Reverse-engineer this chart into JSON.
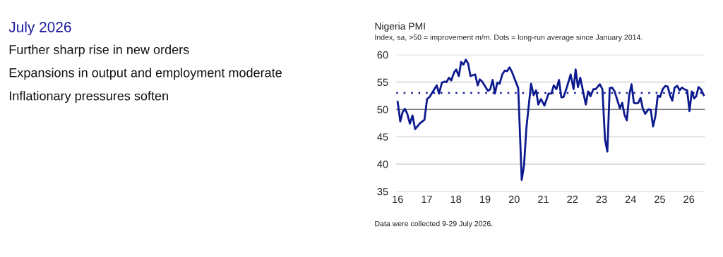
{
  "chart_data": {
    "type": "line",
    "title": "Nigeria PMI",
    "subtitle": "Index, sa, >50 = improvement m/m. Dots = long-run average since January 2014.",
    "annotations": [
      "July 2026",
      "Further sharp rise in new orders",
      "Expansions in output and employment moderate",
      "Inflationary pressures soften",
      "Data were collected 9-29 July 2026."
    ],
    "series": [
      {
        "color": "#0c1a8e",
        "x": [
          16.0,
          16.09,
          16.17,
          16.25,
          16.33,
          16.42,
          16.51,
          16.6,
          16.77,
          16.92,
          17.01,
          17.1,
          17.34,
          17.42,
          17.52,
          17.62,
          17.68,
          17.76,
          17.84,
          17.94,
          18.01,
          18.1,
          18.18,
          18.26,
          18.34,
          18.42,
          18.5,
          18.66,
          18.75,
          18.82,
          18.9,
          19.1,
          19.18,
          19.26,
          19.34,
          19.42,
          19.5,
          19.6,
          19.68,
          19.76,
          19.84,
          19.92,
          20.14,
          20.26,
          20.34,
          20.42,
          20.58,
          20.67,
          20.75,
          20.83,
          20.92,
          21.04,
          21.18,
          21.28,
          21.36,
          21.45,
          21.54,
          21.62,
          21.7,
          21.8,
          21.94,
          22.04,
          22.11,
          22.19,
          22.27,
          22.46,
          22.54,
          22.62,
          22.72,
          22.8,
          22.94,
          23.03,
          23.12,
          23.2,
          23.28,
          23.36,
          23.45,
          23.63,
          23.71,
          23.79,
          23.87,
          23.95,
          24.03,
          24.11,
          24.19,
          24.26,
          24.34,
          24.42,
          24.5,
          24.61,
          24.69,
          24.77,
          24.85,
          24.93,
          25.01,
          25.1,
          25.19,
          25.27,
          25.35,
          25.43,
          25.51,
          25.6,
          25.68,
          25.76,
          25.84,
          25.94,
          26.02,
          26.1,
          26.18,
          26.25,
          26.33,
          26.41,
          26.51
        ],
        "values": [
          51.4,
          47.8,
          49.5,
          50.1,
          49.2,
          47.4,
          48.9,
          46.4,
          47.5,
          48.1,
          51.9,
          52.3,
          54.4,
          52.9,
          54.9,
          55.1,
          55.0,
          55.8,
          55.3,
          56.8,
          57.3,
          56.1,
          58.7,
          58.2,
          59.1,
          58.4,
          56.1,
          56.4,
          54.4,
          55.5,
          55.1,
          53.4,
          53.7,
          55.4,
          52.9,
          54.9,
          54.7,
          56.5,
          57.1,
          57.0,
          57.7,
          56.9,
          53.9,
          37.1,
          39.8,
          46.6,
          54.7,
          52.6,
          53.5,
          50.9,
          51.9,
          50.7,
          52.9,
          52.9,
          54.4,
          53.7,
          55.4,
          52.2,
          52.3,
          53.9,
          56.4,
          53.7,
          57.3,
          54.1,
          55.8,
          50.9,
          53.3,
          52.4,
          53.7,
          53.7,
          54.6,
          53.7,
          44.5,
          42.3,
          53.9,
          54.0,
          53.3,
          50.2,
          51.2,
          49.0,
          48.0,
          52.6,
          54.6,
          51.2,
          51.1,
          51.2,
          52.1,
          50.1,
          49.2,
          50.0,
          49.9,
          46.9,
          48.8,
          52.5,
          52.3,
          53.7,
          54.3,
          54.2,
          52.6,
          51.6,
          54.0,
          54.3,
          53.5,
          54.0,
          53.7,
          53.5,
          49.7,
          53.3,
          52.0,
          52.4,
          54.1,
          53.7,
          52.6
        ]
      }
    ],
    "xlim": [
      15.95,
      26.55
    ],
    "xticks": [
      16,
      17,
      18,
      19,
      20,
      21,
      22,
      23,
      24,
      25,
      26
    ],
    "ylim": [
      35,
      60
    ],
    "yticks": [
      35,
      40,
      45,
      50,
      55,
      60
    ],
    "ref_lines": [
      {
        "axis": "y",
        "value": 53,
        "color": "#0c1a8e",
        "line_style": "dotted"
      },
      {
        "axis": "y",
        "value": 50,
        "color": "#808080",
        "line_style": "solid"
      }
    ],
    "grid": "y",
    "legend": false
  }
}
